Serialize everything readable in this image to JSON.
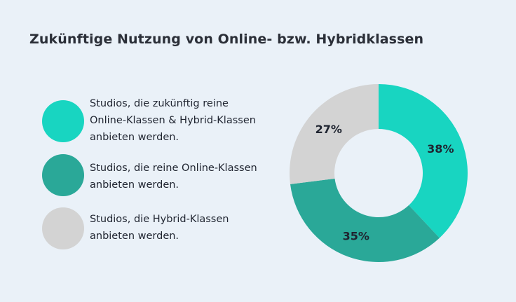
{
  "chart_data": {
    "type": "pie",
    "title": "Zukünftige Nutzung von Online- bzw. Hybridklassen",
    "series": [
      {
        "name": "Studios, die zukünftig reine Online-Klassen & Hybrid-Klassen anbieten werden.",
        "value": 38,
        "label": "38%",
        "color": "#18d5c1"
      },
      {
        "name": "Studios, die reine Online-Klassen anbieten werden.",
        "value": 35,
        "label": "35%",
        "color": "#2aa898"
      },
      {
        "name": "Studios, die Hybrid-Klassen anbieten werden.",
        "value": 27,
        "label": "27%",
        "color": "#d3d3d3"
      }
    ],
    "legend_lines": [
      [
        "Studios, die zukünftig reine",
        "Online-Klassen & Hybrid-Klassen",
        "anbieten werden."
      ],
      [
        "Studios, die reine Online-Klassen",
        "anbieten werden."
      ],
      [
        "Studios, die Hybrid-Klassen",
        "anbieten werden."
      ]
    ],
    "donut": true,
    "legend_position": "left"
  }
}
